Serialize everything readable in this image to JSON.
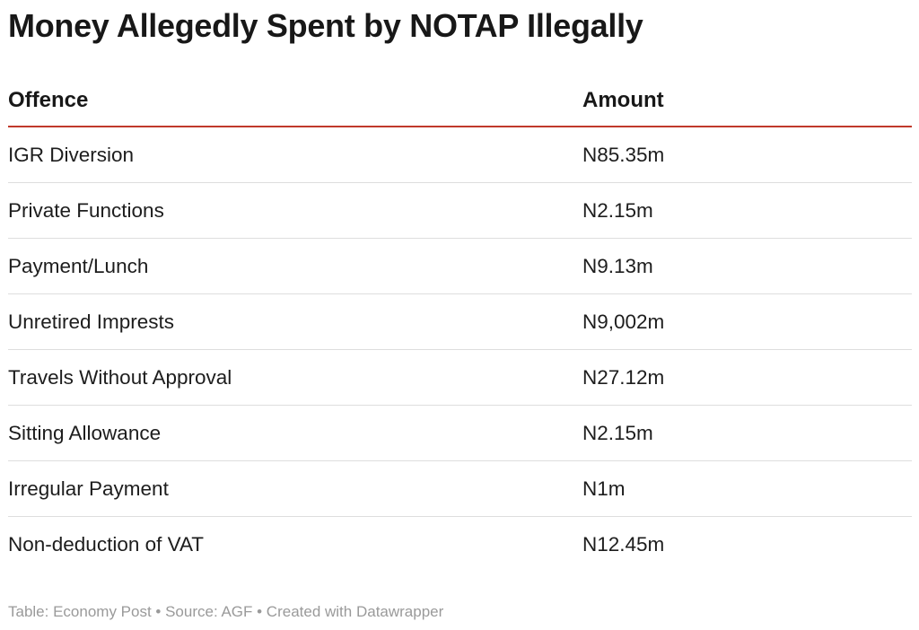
{
  "title": "Money Allegedly Spent by NOTAP Illegally",
  "columns": [
    "Offence",
    "Amount"
  ],
  "rows": [
    [
      "IGR Diversion",
      "N85.35m"
    ],
    [
      "Private Functions",
      "N2.15m"
    ],
    [
      "Payment/Lunch",
      "N9.13m"
    ],
    [
      "Unretired Imprests",
      "N9,002m"
    ],
    [
      "Travels Without Approval",
      "N27.12m"
    ],
    [
      "Sitting Allowance",
      "N2.15m"
    ],
    [
      "Irregular Payment",
      "N1m"
    ],
    [
      "Non-deduction of VAT",
      "N12.45m"
    ]
  ],
  "footer": "Table: Economy Post • Source: AGF • Created with Datawrapper",
  "colors": {
    "header_rule": "#c0392b",
    "row_rule": "#dedede",
    "footer_text": "#9a9a9a"
  },
  "chart_data": {
    "type": "table",
    "title": "Money Allegedly Spent by NOTAP Illegally",
    "columns": [
      "Offence",
      "Amount"
    ],
    "rows": [
      [
        "IGR Diversion",
        "N85.35m"
      ],
      [
        "Private Functions",
        "N2.15m"
      ],
      [
        "Payment/Lunch",
        "N9.13m"
      ],
      [
        "Unretired Imprests",
        "N9,002m"
      ],
      [
        "Travels Without Approval",
        "N27.12m"
      ],
      [
        "Sitting Allowance",
        "N2.15m"
      ],
      [
        "Irregular Payment",
        "N1m"
      ],
      [
        "Non-deduction of VAT",
        "N12.45m"
      ]
    ]
  }
}
